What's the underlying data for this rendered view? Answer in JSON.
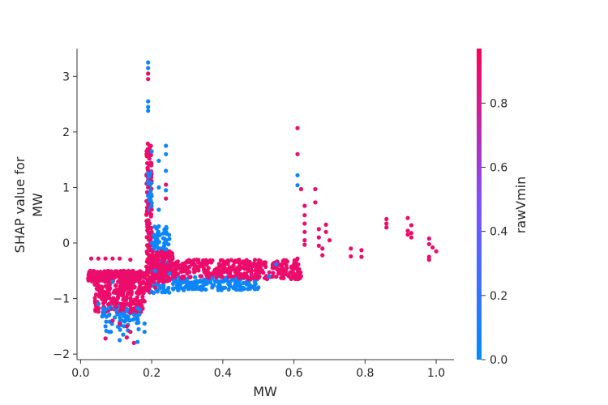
{
  "chart_data": {
    "type": "scatter",
    "xlabel": "MW",
    "ylabel_lines": [
      "SHAP value for",
      "MW"
    ],
    "colorbar_label": "rawVmin",
    "xlim": [
      -0.01,
      1.05
    ],
    "ylim": [
      -2.1,
      3.5
    ],
    "x_ticks": [
      0.0,
      0.2,
      0.4,
      0.6,
      0.8,
      1.0
    ],
    "x_tick_labels": [
      "0.0",
      "0.2",
      "0.4",
      "0.6",
      "0.8",
      "1.0"
    ],
    "y_ticks": [
      3,
      2,
      1,
      0,
      -1,
      -2
    ],
    "y_tick_labels": [
      "3",
      "2",
      "1",
      "0",
      "−1",
      "−2"
    ],
    "colorbar_ticks": [
      0.0,
      0.2,
      0.4,
      0.6,
      0.8
    ],
    "colorbar_tick_labels": [
      "0.0",
      "0.2",
      "0.4",
      "0.6",
      "0.8"
    ],
    "colorbar_range": [
      0.0,
      0.97
    ],
    "colormap": {
      "low": "#008bfb",
      "mid": "#7c52ff",
      "high": "#ff0052"
    },
    "grid": false,
    "legend": "colorbar-right",
    "points": [
      {
        "x": 0.03,
        "y": -0.28,
        "c": 0.9
      },
      {
        "x": 0.05,
        "y": -0.28,
        "c": 0.9
      },
      {
        "x": 0.07,
        "y": -0.28,
        "c": 0.9
      },
      {
        "x": 0.09,
        "y": -0.28,
        "c": 0.9
      },
      {
        "x": 0.11,
        "y": -0.28,
        "c": 0.9
      },
      {
        "x": 0.14,
        "y": -0.3,
        "c": 0.9
      },
      {
        "x": 0.03,
        "y": -0.57,
        "c": 0.9
      },
      {
        "x": 0.05,
        "y": -0.6,
        "c": 0.9
      },
      {
        "x": 0.07,
        "y": -0.58,
        "c": 0.9
      },
      {
        "x": 0.09,
        "y": -0.62,
        "c": 0.9
      },
      {
        "x": 0.11,
        "y": -0.6,
        "c": 0.9
      },
      {
        "x": 0.13,
        "y": -0.57,
        "c": 0.9
      },
      {
        "x": 0.15,
        "y": -0.6,
        "c": 0.9
      },
      {
        "x": 0.17,
        "y": -0.55,
        "c": 0.9
      },
      {
        "x": 0.04,
        "y": -0.75,
        "c": 0.9
      },
      {
        "x": 0.06,
        "y": -0.8,
        "c": 0.9
      },
      {
        "x": 0.08,
        "y": -0.85,
        "c": 0.9
      },
      {
        "x": 0.1,
        "y": -0.9,
        "c": 0.9
      },
      {
        "x": 0.12,
        "y": -0.95,
        "c": 0.9
      },
      {
        "x": 0.14,
        "y": -1.0,
        "c": 0.9
      },
      {
        "x": 0.16,
        "y": -0.9,
        "c": 0.9
      },
      {
        "x": 0.18,
        "y": -0.8,
        "c": 0.9
      },
      {
        "x": 0.06,
        "y": -1.0,
        "c": 0.9
      },
      {
        "x": 0.08,
        "y": -1.1,
        "c": 0.9
      },
      {
        "x": 0.1,
        "y": -1.15,
        "c": 0.9
      },
      {
        "x": 0.12,
        "y": -1.2,
        "c": 0.9
      },
      {
        "x": 0.14,
        "y": -1.25,
        "c": 0.9
      },
      {
        "x": 0.16,
        "y": -1.1,
        "c": 0.9
      },
      {
        "x": 0.18,
        "y": -1.05,
        "c": 0.9
      },
      {
        "x": 0.09,
        "y": -1.4,
        "c": 0.9
      },
      {
        "x": 0.11,
        "y": -1.45,
        "c": 0.9
      },
      {
        "x": 0.13,
        "y": -1.5,
        "c": 0.9
      },
      {
        "x": 0.14,
        "y": -1.6,
        "c": 0.9
      },
      {
        "x": 0.13,
        "y": -1.7,
        "c": 0.9
      },
      {
        "x": 0.15,
        "y": -1.8,
        "c": 0.9
      },
      {
        "x": 0.07,
        "y": -1.72,
        "c": 0.9
      },
      {
        "x": 0.07,
        "y": -1.2,
        "c": 0.05
      },
      {
        "x": 0.08,
        "y": -1.3,
        "c": 0.05
      },
      {
        "x": 0.07,
        "y": -1.5,
        "c": 0.05
      },
      {
        "x": 0.08,
        "y": -1.6,
        "c": 0.05
      },
      {
        "x": 0.11,
        "y": -1.75,
        "c": 0.05
      },
      {
        "x": 0.12,
        "y": -1.65,
        "c": 0.05
      },
      {
        "x": 0.16,
        "y": -1.78,
        "c": 0.05
      },
      {
        "x": 0.18,
        "y": -1.45,
        "c": 0.05
      },
      {
        "x": 0.18,
        "y": -1.6,
        "c": 0.05
      },
      {
        "x": 0.13,
        "y": -1.35,
        "c": 0.05
      },
      {
        "x": 0.09,
        "y": -0.7,
        "c": 0.05
      },
      {
        "x": 0.05,
        "y": -1.1,
        "c": 0.05
      },
      {
        "x": 0.19,
        "y": -0.45,
        "c": 0.9
      },
      {
        "x": 0.19,
        "y": -0.2,
        "c": 0.9
      },
      {
        "x": 0.19,
        "y": 0.1,
        "c": 0.9
      },
      {
        "x": 0.19,
        "y": 0.4,
        "c": 0.9
      },
      {
        "x": 0.19,
        "y": 0.7,
        "c": 0.9
      },
      {
        "x": 0.19,
        "y": 1.0,
        "c": 0.9
      },
      {
        "x": 0.19,
        "y": 1.3,
        "c": 0.9
      },
      {
        "x": 0.195,
        "y": 1.75,
        "c": 0.9
      },
      {
        "x": 0.19,
        "y": 2.95,
        "c": 0.9
      },
      {
        "x": 0.19,
        "y": 3.05,
        "c": 0.9
      },
      {
        "x": 0.2,
        "y": 0.6,
        "c": 0.9
      },
      {
        "x": 0.2,
        "y": 0.2,
        "c": 0.9
      },
      {
        "x": 0.19,
        "y": 3.25,
        "c": 0.05
      },
      {
        "x": 0.19,
        "y": 3.15,
        "c": 0.05
      },
      {
        "x": 0.19,
        "y": 2.55,
        "c": 0.05
      },
      {
        "x": 0.19,
        "y": 2.45,
        "c": 0.05
      },
      {
        "x": 0.19,
        "y": 2.38,
        "c": 0.05
      },
      {
        "x": 0.19,
        "y": 1.25,
        "c": 0.05
      },
      {
        "x": 0.19,
        "y": 1.1,
        "c": 0.05
      },
      {
        "x": 0.19,
        "y": 0.85,
        "c": 0.05
      },
      {
        "x": 0.2,
        "y": 1.65,
        "c": 0.05
      },
      {
        "x": 0.2,
        "y": 0.0,
        "c": 0.05
      },
      {
        "x": 0.22,
        "y": 1.48,
        "c": 0.05
      },
      {
        "x": 0.22,
        "y": 1.0,
        "c": 0.05
      },
      {
        "x": 0.22,
        "y": 0.6,
        "c": 0.05
      },
      {
        "x": 0.22,
        "y": 0.3,
        "c": 0.05
      },
      {
        "x": 0.22,
        "y": -0.1,
        "c": 0.05
      },
      {
        "x": 0.21,
        "y": -0.5,
        "c": 0.05
      },
      {
        "x": 0.24,
        "y": 1.75,
        "c": 0.05
      },
      {
        "x": 0.24,
        "y": 1.6,
        "c": 0.05
      },
      {
        "x": 0.24,
        "y": 1.3,
        "c": 0.05
      },
      {
        "x": 0.24,
        "y": 0.95,
        "c": 0.05
      },
      {
        "x": 0.24,
        "y": 0.2,
        "c": 0.05
      },
      {
        "x": 0.25,
        "y": -0.55,
        "c": 0.05
      },
      {
        "x": 0.21,
        "y": -0.3,
        "c": 0.9
      },
      {
        "x": 0.21,
        "y": -0.6,
        "c": 0.9
      },
      {
        "x": 0.21,
        "y": -0.8,
        "c": 0.9
      },
      {
        "x": 0.22,
        "y": -0.4,
        "c": 0.9
      },
      {
        "x": 0.23,
        "y": -0.25,
        "c": 0.9
      },
      {
        "x": 0.24,
        "y": 1.05,
        "c": 0.9
      },
      {
        "x": 0.24,
        "y": 0.8,
        "c": 0.9
      },
      {
        "x": 0.25,
        "y": -0.3,
        "c": 0.9
      },
      {
        "x": 0.25,
        "y": -0.15,
        "c": 0.9
      },
      {
        "x": 0.26,
        "y": -0.4,
        "c": 0.9
      },
      {
        "x": 0.26,
        "y": -0.5,
        "c": 0.9
      },
      {
        "x": 0.28,
        "y": -0.45,
        "c": 0.9
      },
      {
        "x": 0.3,
        "y": -0.55,
        "c": 0.9
      },
      {
        "x": 0.32,
        "y": -0.4,
        "c": 0.9
      },
      {
        "x": 0.34,
        "y": -0.6,
        "c": 0.9
      },
      {
        "x": 0.36,
        "y": -0.45,
        "c": 0.9
      },
      {
        "x": 0.38,
        "y": -0.5,
        "c": 0.9
      },
      {
        "x": 0.4,
        "y": -0.4,
        "c": 0.9
      },
      {
        "x": 0.42,
        "y": -0.55,
        "c": 0.9
      },
      {
        "x": 0.44,
        "y": -0.45,
        "c": 0.9
      },
      {
        "x": 0.46,
        "y": -0.35,
        "c": 0.9
      },
      {
        "x": 0.48,
        "y": -0.5,
        "c": 0.9
      },
      {
        "x": 0.5,
        "y": -0.42,
        "c": 0.9
      },
      {
        "x": 0.52,
        "y": -0.35,
        "c": 0.9
      },
      {
        "x": 0.54,
        "y": -0.45,
        "c": 0.9
      },
      {
        "x": 0.56,
        "y": -0.4,
        "c": 0.9
      },
      {
        "x": 0.58,
        "y": -0.45,
        "c": 0.9
      },
      {
        "x": 0.6,
        "y": -0.45,
        "c": 0.9
      },
      {
        "x": 0.61,
        "y": -0.28,
        "c": 0.9
      },
      {
        "x": 0.27,
        "y": -0.8,
        "c": 0.05
      },
      {
        "x": 0.29,
        "y": -0.85,
        "c": 0.05
      },
      {
        "x": 0.31,
        "y": -0.75,
        "c": 0.05
      },
      {
        "x": 0.33,
        "y": -0.8,
        "c": 0.05
      },
      {
        "x": 0.35,
        "y": -0.7,
        "c": 0.05
      },
      {
        "x": 0.37,
        "y": -0.8,
        "c": 0.05
      },
      {
        "x": 0.39,
        "y": -0.75,
        "c": 0.05
      },
      {
        "x": 0.42,
        "y": -0.78,
        "c": 0.05
      },
      {
        "x": 0.44,
        "y": -0.7,
        "c": 0.05
      },
      {
        "x": 0.47,
        "y": -0.72,
        "c": 0.05
      },
      {
        "x": 0.49,
        "y": -0.7,
        "c": 0.05
      },
      {
        "x": 0.5,
        "y": -0.8,
        "c": 0.05
      },
      {
        "x": 0.53,
        "y": -0.6,
        "c": 0.05
      },
      {
        "x": 0.55,
        "y": -0.38,
        "c": 0.05
      },
      {
        "x": 0.61,
        "y": 2.07,
        "c": 0.9
      },
      {
        "x": 0.61,
        "y": 1.6,
        "c": 0.9
      },
      {
        "x": 0.61,
        "y": 1.22,
        "c": 0.05
      },
      {
        "x": 0.61,
        "y": 1.04,
        "c": 0.05
      },
      {
        "x": 0.62,
        "y": 0.97,
        "c": 0.9
      },
      {
        "x": 0.63,
        "y": 0.67,
        "c": 0.9
      },
      {
        "x": 0.63,
        "y": 0.5,
        "c": 0.9
      },
      {
        "x": 0.63,
        "y": 0.35,
        "c": 0.9
      },
      {
        "x": 0.63,
        "y": 0.2,
        "c": 0.9
      },
      {
        "x": 0.63,
        "y": 0.05,
        "c": 0.9
      },
      {
        "x": 0.63,
        "y": -0.03,
        "c": 0.9
      },
      {
        "x": 0.66,
        "y": 0.97,
        "c": 0.9
      },
      {
        "x": 0.66,
        "y": 0.73,
        "c": 0.9
      },
      {
        "x": 0.67,
        "y": 0.25,
        "c": 0.9
      },
      {
        "x": 0.67,
        "y": 0.1,
        "c": 0.9
      },
      {
        "x": 0.67,
        "y": -0.05,
        "c": 0.9
      },
      {
        "x": 0.68,
        "y": -0.1,
        "c": 0.9
      },
      {
        "x": 0.68,
        "y": -0.22,
        "c": 0.9
      },
      {
        "x": 0.69,
        "y": 0.33,
        "c": 0.9
      },
      {
        "x": 0.69,
        "y": 0.2,
        "c": 0.9
      },
      {
        "x": 0.7,
        "y": 0.05,
        "c": 0.9
      },
      {
        "x": 0.76,
        "y": -0.1,
        "c": 0.9
      },
      {
        "x": 0.76,
        "y": -0.24,
        "c": 0.9
      },
      {
        "x": 0.79,
        "y": -0.13,
        "c": 0.9
      },
      {
        "x": 0.79,
        "y": -0.25,
        "c": 0.9
      },
      {
        "x": 0.86,
        "y": 0.43,
        "c": 0.9
      },
      {
        "x": 0.86,
        "y": 0.35,
        "c": 0.9
      },
      {
        "x": 0.86,
        "y": 0.28,
        "c": 0.9
      },
      {
        "x": 0.92,
        "y": 0.45,
        "c": 0.9
      },
      {
        "x": 0.92,
        "y": 0.22,
        "c": 0.9
      },
      {
        "x": 0.92,
        "y": 0.15,
        "c": 0.9
      },
      {
        "x": 0.93,
        "y": 0.32,
        "c": 0.9
      },
      {
        "x": 0.93,
        "y": 0.18,
        "c": 0.9
      },
      {
        "x": 0.93,
        "y": 0.1,
        "c": 0.9
      },
      {
        "x": 0.98,
        "y": 0.08,
        "c": 0.9
      },
      {
        "x": 0.98,
        "y": -0.02,
        "c": 0.9
      },
      {
        "x": 0.98,
        "y": -0.25,
        "c": 0.9
      },
      {
        "x": 0.98,
        "y": -0.3,
        "c": 0.9
      },
      {
        "x": 0.99,
        "y": -0.08,
        "c": 0.9
      },
      {
        "x": 1.0,
        "y": -0.15,
        "c": 0.9
      }
    ],
    "dense_regions": [
      {
        "x": [
          0.02,
          0.18
        ],
        "y": [
          -0.7,
          -0.5
        ],
        "n": 220,
        "c": 0.9
      },
      {
        "x": [
          0.04,
          0.18
        ],
        "y": [
          -1.25,
          -0.7
        ],
        "n": 240,
        "c": 0.9
      },
      {
        "x": [
          0.06,
          0.17
        ],
        "y": [
          -1.6,
          -1.1
        ],
        "n": 60,
        "c": 0.05
      },
      {
        "x": [
          0.185,
          0.2
        ],
        "y": [
          -0.9,
          1.8
        ],
        "n": 140,
        "c": 0.9
      },
      {
        "x": [
          0.19,
          0.2
        ],
        "y": [
          0.6,
          1.3
        ],
        "n": 30,
        "c": 0.05
      },
      {
        "x": [
          0.2,
          0.25
        ],
        "y": [
          -0.9,
          0.3
        ],
        "n": 120,
        "c": 0.05
      },
      {
        "x": [
          0.2,
          0.26
        ],
        "y": [
          -0.7,
          -0.15
        ],
        "n": 160,
        "c": 0.9
      },
      {
        "x": [
          0.26,
          0.5
        ],
        "y": [
          -0.85,
          -0.6
        ],
        "n": 170,
        "c": 0.05
      },
      {
        "x": [
          0.26,
          0.62
        ],
        "y": [
          -0.65,
          -0.3
        ],
        "n": 330,
        "c": 0.9
      }
    ]
  }
}
